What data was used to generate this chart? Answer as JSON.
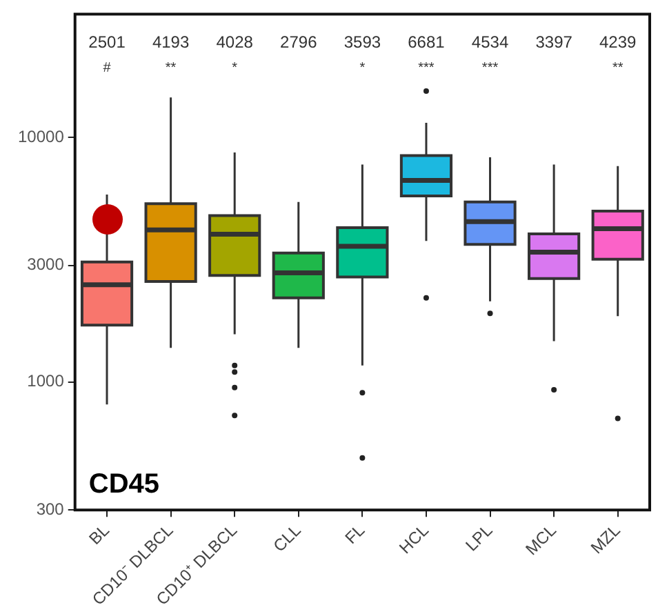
{
  "chart_data": {
    "type": "box",
    "categories": [
      "BL",
      "CD10⁻ DLBCL",
      "CD10⁺ DLBCL",
      "CLL",
      "FL",
      "HCL",
      "LPL",
      "MCL",
      "MZL"
    ],
    "colors": [
      "#f8766d",
      "#d89000",
      "#a3a500",
      "#1fb84a",
      "#00bf8d",
      "#1cb8e0",
      "#6495f5",
      "#d978f0",
      "#fb62c8"
    ],
    "boxes": [
      {
        "low": 810,
        "q1": 1710,
        "median": 2501,
        "q3": 3100,
        "high": 5850
      },
      {
        "low": 1380,
        "q1": 2580,
        "median": 4193,
        "q3": 5370,
        "high": 14600
      },
      {
        "low": 1570,
        "q1": 2730,
        "median": 4028,
        "q3": 4800,
        "high": 8690,
        "outliers": [
          1170,
          1100,
          950,
          730
        ]
      },
      {
        "low": 1380,
        "q1": 2210,
        "median": 2796,
        "q3": 3370,
        "high": 5450
      },
      {
        "low": 1170,
        "q1": 2690,
        "median": 3593,
        "q3": 4280,
        "high": 7760,
        "outliers": [
          905,
          490
        ]
      },
      {
        "low": 3780,
        "q1": 5770,
        "median": 6681,
        "q3": 8440,
        "high": 11500,
        "outliers": [
          15500,
          2210
        ]
      },
      {
        "low": 2140,
        "q1": 3660,
        "median": 4534,
        "q3": 5450,
        "high": 8310,
        "outliers": [
          1910
        ]
      },
      {
        "low": 1470,
        "q1": 2650,
        "median": 3397,
        "q3": 4040,
        "high": 7760,
        "outliers": [
          930
        ]
      },
      {
        "low": 1860,
        "q1": 3180,
        "median": 4239,
        "q3": 5000,
        "high": 7640,
        "outliers": [
          710
        ]
      }
    ],
    "log": true,
    "ylim": [
      300,
      32000
    ],
    "yticks": [
      300,
      1000,
      3000,
      10000
    ],
    "grid": false,
    "annotations": [
      "2501\n#",
      "4193\n**",
      "4028\n*",
      "2796",
      "3593\n*",
      "6681\n***",
      "4534\n***",
      "3397",
      "4239\n**",
      "CD45"
    ]
  }
}
